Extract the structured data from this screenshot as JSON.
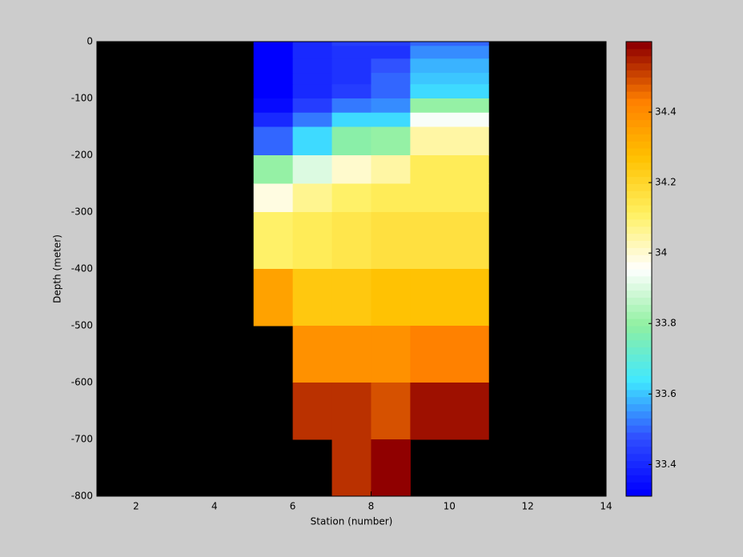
{
  "chart_data": {
    "type": "heatmap",
    "xlabel": "Station (number)",
    "ylabel": "Depth (meter)",
    "xlim": [
      1,
      14
    ],
    "xticks": [
      2,
      4,
      6,
      8,
      10,
      12,
      14
    ],
    "ylim": [
      -800,
      0
    ],
    "yticks": [
      0,
      -100,
      -200,
      -300,
      -400,
      -500,
      -600,
      -700,
      -800
    ],
    "x_edges": [
      5,
      6,
      7,
      8,
      9,
      11
    ],
    "y_edges": [
      0,
      -7.5,
      -30,
      -55,
      -75,
      -100,
      -125,
      -150,
      -200,
      -250,
      -300,
      -400,
      -500,
      -600,
      -700,
      -800
    ],
    "z": [
      [
        33.32,
        33.4,
        33.45,
        33.45,
        33.5
      ],
      [
        33.32,
        33.4,
        33.43,
        33.42,
        33.55
      ],
      [
        33.32,
        33.4,
        33.43,
        33.48,
        33.58
      ],
      [
        33.32,
        33.4,
        33.42,
        33.5,
        33.6
      ],
      [
        33.32,
        33.4,
        33.45,
        33.5,
        33.63
      ],
      [
        33.35,
        33.45,
        33.52,
        33.55,
        33.8
      ],
      [
        33.4,
        33.53,
        33.62,
        33.63,
        33.95
      ],
      [
        33.5,
        33.63,
        33.78,
        33.8,
        34.05
      ],
      [
        33.8,
        33.9,
        34.0,
        34.05,
        34.12
      ],
      [
        33.98,
        34.07,
        34.1,
        34.12,
        34.13
      ],
      [
        34.1,
        34.13,
        34.15,
        34.16,
        34.17
      ],
      [
        34.35,
        34.25,
        34.25,
        34.27,
        34.27
      ],
      [
        null,
        34.38,
        34.38,
        34.38,
        34.42
      ],
      [
        null,
        34.53,
        34.53,
        34.48,
        34.56
      ],
      [
        null,
        null,
        34.53,
        34.58,
        null
      ]
    ],
    "clim": [
      33.31,
      34.6
    ],
    "cticks": [
      33.4,
      33.6,
      33.8,
      34,
      34.2,
      34.4
    ],
    "colormap": [
      "#0000ff",
      "#3050ff",
      "#40e8ff",
      "#90f0a0",
      "#ffffff",
      "#fff060",
      "#ffc000",
      "#ff8000",
      "#900000"
    ],
    "background": "#000000"
  }
}
